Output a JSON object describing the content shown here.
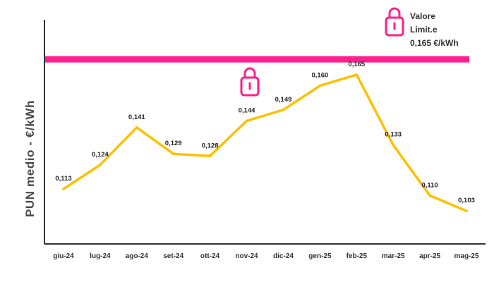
{
  "chart_data": {
    "type": "line",
    "title": "",
    "xlabel": "",
    "ylabel": "PUN medio - €/kWh",
    "categories": [
      "giu-24",
      "lug-24",
      "ago-24",
      "set-24",
      "ott-24",
      "nov-24",
      "dic-24",
      "gen-25",
      "feb-25",
      "mar-25",
      "apr-25",
      "mag-25"
    ],
    "series": [
      {
        "values": [
          0.113,
          0.124,
          0.141,
          0.129,
          0.128,
          0.144,
          0.149,
          0.16,
          0.165,
          0.133,
          0.11,
          0.103
        ],
        "labels": [
          "0,113",
          "0,124",
          "0,141",
          "0,129",
          "0,128",
          "0,144",
          "0,149",
          "0,160",
          "0,165",
          "0,133",
          "0,110",
          "0,103"
        ],
        "color": "#FFC000"
      }
    ],
    "limit_line": {
      "value": 0.172,
      "color": "#FF1F8E"
    },
    "legend": {
      "lines": [
        "Valore",
        "Limit.e",
        "0,165 €/kWh"
      ],
      "icon": "lock-icon",
      "position": "top-right"
    },
    "center_icon": "lock-icon",
    "ylim": [
      0.088,
      0.19
    ],
    "grid": false
  }
}
